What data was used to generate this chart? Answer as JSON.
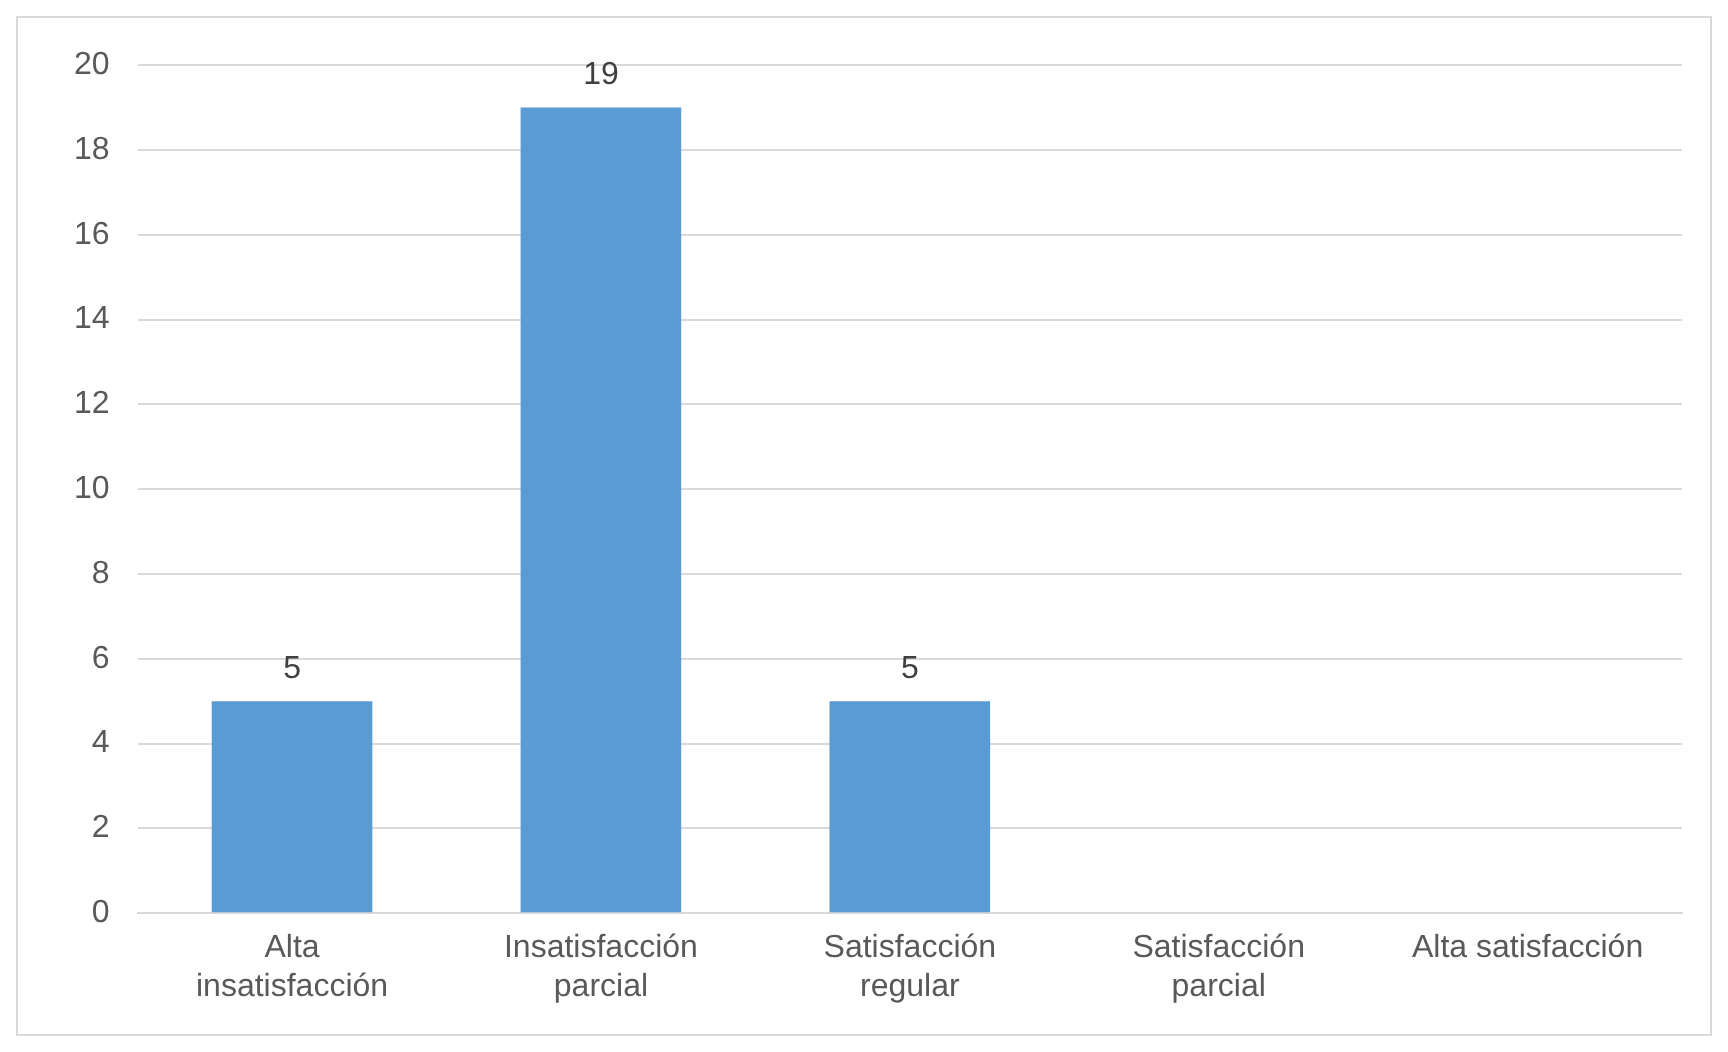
{
  "chart_data": {
    "type": "bar",
    "categories": [
      "Alta insatisfacción",
      "Insatisfacción parcial",
      "Satisfacción regular",
      "Satisfacción parcial",
      "Alta satisfacción"
    ],
    "values": [
      5,
      19,
      5,
      0,
      0
    ],
    "value_labels": [
      "5",
      "19",
      "5",
      null,
      null
    ],
    "color": "#5b9bd5",
    "ylim": [
      0,
      20
    ],
    "yticks": [
      0,
      2,
      4,
      6,
      8,
      10,
      12,
      14,
      16,
      18,
      20
    ],
    "grid": "y",
    "legend": false
  }
}
